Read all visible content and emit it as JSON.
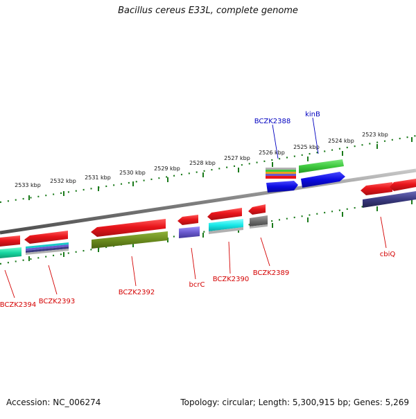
{
  "map": {
    "title": "Bacillus cereus E33L, complete genome",
    "accession": "Accession: NC_006274",
    "summary": "Topology: circular; Length: 5,300,915 bp; Genes: 5,269"
  },
  "ticks": [
    "2533 kbp",
    "2532 kbp",
    "2531 kbp",
    "2530 kbp",
    "2529 kbp",
    "2528 kbp",
    "2527 kbp",
    "2526 kbp",
    "2525 kbp",
    "2524 kbp",
    "2523 kbp"
  ],
  "genes": {
    "bczk2388": "BCZK2388",
    "kinB": "kinB",
    "bczk2389": "BCZK2389",
    "bczk2390": "BCZK2390",
    "bcrC": "bcrC",
    "bczk2392": "BCZK2392",
    "bczk2393": "BCZK2393",
    "bczk2394": "BCZK2394",
    "cbiQ": "cbiQ"
  },
  "colors": {
    "backbone": "#808080",
    "tick": "#1a7a1a",
    "cds_red": "#e8151b",
    "rna_blue": "#0a0ae0",
    "olive": "#6b8c1e",
    "green": "#3fc93f",
    "cyan": "#18e8e8",
    "purple": "#6a5acd",
    "navy": "#3a3a80",
    "gray": "#707070",
    "teal": "#17d6a0",
    "label_red": "#d40000",
    "label_blue": "#0000c0"
  }
}
